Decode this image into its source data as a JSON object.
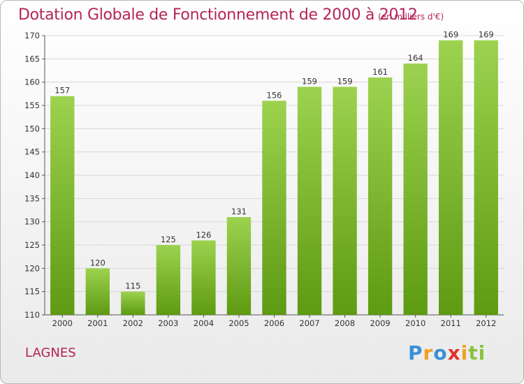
{
  "header": {
    "title": "Dotation Globale de Fonctionnement de 2000 à 2012",
    "unit": "(en milliers d'€)"
  },
  "footer": {
    "commune": "LAGNES",
    "logo": {
      "text": "Proxiti",
      "letters": [
        {
          "char": "P",
          "color": "#3a8fd8"
        },
        {
          "char": "r",
          "color": "#f0a020"
        },
        {
          "char": "o",
          "color": "#3a8fd8"
        },
        {
          "char": "x",
          "color": "#e0352b"
        },
        {
          "char": "i",
          "color": "#f0a020"
        },
        {
          "char": "t",
          "color": "#8ac43f"
        },
        {
          "char": "i",
          "color": "#8ac43f"
        }
      ]
    }
  },
  "colors": {
    "bar_top": "#9cd24f",
    "bar_bottom": "#5e9a12",
    "grid": "#d6d6d6",
    "accent": "#b4245a"
  },
  "chart_data": {
    "type": "bar",
    "categories": [
      "2000",
      "2001",
      "2002",
      "2003",
      "2004",
      "2005",
      "2006",
      "2007",
      "2008",
      "2009",
      "2010",
      "2011",
      "2012"
    ],
    "values": [
      157,
      120,
      115,
      125,
      126,
      131,
      156,
      159,
      159,
      161,
      164,
      169,
      169
    ],
    "ylim": [
      110,
      170
    ],
    "yticks": [
      110,
      115,
      120,
      125,
      130,
      135,
      140,
      145,
      150,
      155,
      160,
      165,
      170
    ],
    "grid": true,
    "legend": "none"
  }
}
